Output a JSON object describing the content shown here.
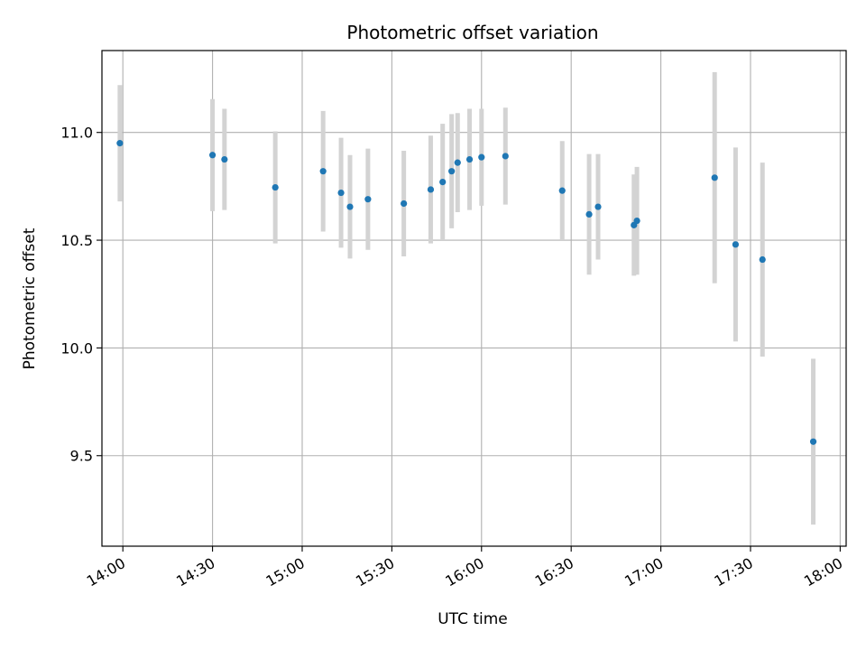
{
  "chart_data": {
    "type": "scatter",
    "title": "Photometric offset variation",
    "xlabel": "UTC time",
    "ylabel": "Photometric offset",
    "grid": true,
    "x_ticks": [
      "14:00",
      "14:30",
      "15:00",
      "15:30",
      "16:00",
      "16:30",
      "17:00",
      "17:30",
      "18:00"
    ],
    "y_ticks": [
      "9.5",
      "10.0",
      "10.5",
      "11.0"
    ],
    "y_tick_values": [
      9.5,
      10.0,
      10.5,
      11.0
    ],
    "xlim": [
      "13:53",
      "18:02"
    ],
    "ylim": [
      9.08,
      11.38
    ],
    "colors": {
      "point": "#1f77b4",
      "errorbar": "#d3d3d3",
      "grid": "#b0b0b0"
    },
    "points": [
      {
        "x": "13:59",
        "y": 10.95,
        "yerr": 0.27
      },
      {
        "x": "14:30",
        "y": 10.895,
        "yerr": 0.26
      },
      {
        "x": "14:34",
        "y": 10.875,
        "yerr": 0.235
      },
      {
        "x": "14:51",
        "y": 10.745,
        "yerr": 0.26
      },
      {
        "x": "15:07",
        "y": 10.82,
        "yerr": 0.28
      },
      {
        "x": "15:13",
        "y": 10.72,
        "yerr": 0.255
      },
      {
        "x": "15:16",
        "y": 10.655,
        "yerr": 0.24
      },
      {
        "x": "15:22",
        "y": 10.69,
        "yerr": 0.235
      },
      {
        "x": "15:34",
        "y": 10.67,
        "yerr": 0.245
      },
      {
        "x": "15:43",
        "y": 10.735,
        "yerr": 0.25
      },
      {
        "x": "15:47",
        "y": 10.77,
        "yerr": 0.27
      },
      {
        "x": "15:50",
        "y": 10.82,
        "yerr": 0.265
      },
      {
        "x": "15:52",
        "y": 10.86,
        "yerr": 0.23
      },
      {
        "x": "15:56",
        "y": 10.875,
        "yerr": 0.235
      },
      {
        "x": "16:00",
        "y": 10.885,
        "yerr": 0.225
      },
      {
        "x": "16:08",
        "y": 10.89,
        "yerr": 0.225
      },
      {
        "x": "16:27",
        "y": 10.73,
        "yerr": 0.23
      },
      {
        "x": "16:36",
        "y": 10.62,
        "yerr": 0.28
      },
      {
        "x": "16:39",
        "y": 10.655,
        "yerr": 0.245
      },
      {
        "x": "16:51",
        "y": 10.57,
        "yerr": 0.235
      },
      {
        "x": "16:52",
        "y": 10.59,
        "yerr": 0.25
      },
      {
        "x": "17:18",
        "y": 10.79,
        "yerr": 0.49
      },
      {
        "x": "17:25",
        "y": 10.48,
        "yerr": 0.45
      },
      {
        "x": "17:34",
        "y": 10.41,
        "yerr": 0.45
      },
      {
        "x": "17:51",
        "y": 9.565,
        "yerr": 0.385
      }
    ]
  }
}
